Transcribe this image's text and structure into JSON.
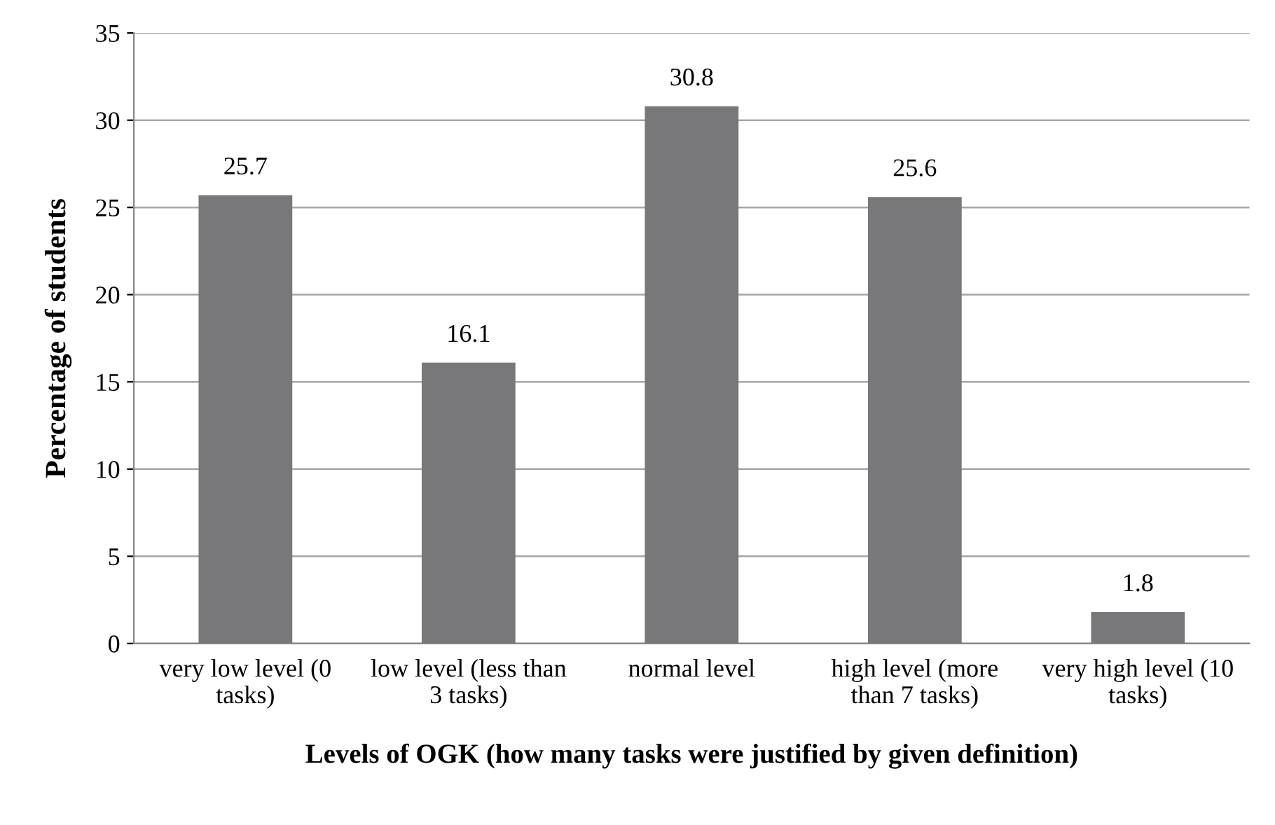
{
  "chart_data": {
    "type": "bar",
    "xlabel": "Levels of OGK (how many tasks were justified by given definition)",
    "ylabel": "Percentage of students",
    "categories": [
      "very low level (0\ntasks)",
      "low level (less than\n3 tasks)",
      "normal level",
      "high level (more\nthan 7 tasks)",
      "very high level (10\ntasks)"
    ],
    "values": [
      25.7,
      16.1,
      30.8,
      25.6,
      1.8
    ],
    "color": "#78787b",
    "ylim": [
      0,
      35
    ],
    "yticks": [
      0,
      5,
      10,
      15,
      20,
      25,
      30,
      35
    ],
    "grid": "y",
    "data_labels": true
  }
}
